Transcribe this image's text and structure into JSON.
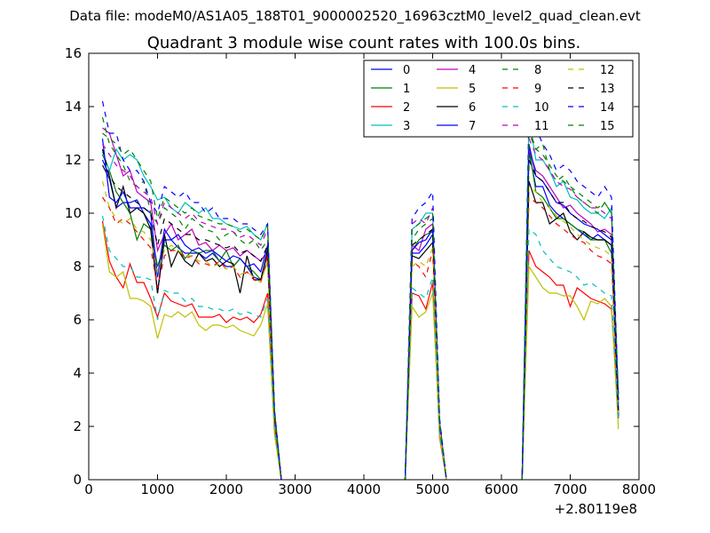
{
  "chart_data": {
    "type": "line",
    "suptitle": "Data file: modeM0/AS1A05_188T01_9000002520_16963cztM0_level2_quad_clean.evt",
    "title": "Quadrant 3 module wise count rates with 100.0s bins.",
    "xlabel": "",
    "ylabel": "",
    "x_offset_label": "+2.80119e8",
    "xlim": [
      0,
      8000
    ],
    "ylim": [
      0,
      16
    ],
    "xticks": [
      "0",
      "1000",
      "2000",
      "3000",
      "4000",
      "5000",
      "6000",
      "7000",
      "8000"
    ],
    "yticks": [
      "0",
      "2",
      "4",
      "6",
      "8",
      "10",
      "12",
      "14",
      "16"
    ],
    "grid": false,
    "legend_position": "top-right",
    "legend_columns": 4,
    "segments": [
      {
        "x_start": 200,
        "step": 100,
        "count": 25
      },
      {
        "x_start": 4600,
        "step": 100,
        "count": 6
      },
      {
        "x_start": 6300,
        "step": 100,
        "count": 15
      }
    ],
    "series": [
      {
        "name": "0",
        "color": "#0000ff",
        "dash": false,
        "values": [
          [
            12.0,
            11.4,
            10.2,
            10.4,
            10.4,
            10.5,
            10.0,
            9.6,
            7.0,
            9.0,
            9.0,
            8.7,
            8.5,
            8.5,
            8.5,
            8.3,
            8.5,
            8.2,
            8.0,
            8.0,
            8.3,
            8.0,
            7.6,
            7.5,
            8.5,
            2.3,
            0
          ],
          [
            0,
            8.5,
            8.5,
            8.8,
            9.2,
            2.0,
            0
          ],
          [
            0,
            12.3,
            11.0,
            11.0,
            10.3,
            10.0,
            9.8,
            9.6,
            9.4,
            9.2,
            9.0,
            9.2,
            9.0,
            8.8,
            2.3
          ]
        ]
      },
      {
        "name": "1",
        "color": "#008000",
        "dash": false,
        "values": [
          [
            12.2,
            11.6,
            10.8,
            10.4,
            10.0,
            9.0,
            9.6,
            9.4,
            8.0,
            8.8,
            8.6,
            8.8,
            8.3,
            8.6,
            8.5,
            8.6,
            8.6,
            8.2,
            8.6,
            8.0,
            8.3,
            8.0,
            7.8,
            7.5,
            8.2,
            2.1,
            0
          ],
          [
            0,
            8.6,
            9.0,
            9.2,
            9.3,
            2.0,
            0
          ],
          [
            0,
            12.5,
            10.8,
            10.6,
            10.2,
            9.8,
            9.8,
            9.6,
            9.4,
            9.3,
            9.0,
            9.0,
            9.0,
            8.5,
            3.2
          ]
        ]
      },
      {
        "name": "2",
        "color": "#ff0000",
        "dash": false,
        "values": [
          [
            9.7,
            8.2,
            7.6,
            7.2,
            8.1,
            7.4,
            7.4,
            6.8,
            6.1,
            7.0,
            6.7,
            6.6,
            6.5,
            6.6,
            6.1,
            6.1,
            6.1,
            6.2,
            5.9,
            6.1,
            6.0,
            6.1,
            5.9,
            6.2,
            7.0,
            1.8,
            0
          ],
          [
            0,
            7.0,
            6.9,
            6.4,
            7.4,
            1.6,
            0
          ],
          [
            0,
            8.6,
            8.0,
            7.8,
            7.6,
            7.3,
            7.3,
            6.5,
            7.2,
            7.0,
            6.8,
            6.7,
            6.6,
            6.4,
            2.5
          ]
        ]
      },
      {
        "name": "3",
        "color": "#00bfbf",
        "dash": false,
        "values": [
          [
            12.3,
            11.6,
            12.4,
            12.0,
            12.2,
            12.0,
            11.4,
            11.0,
            10.5,
            10.6,
            10.2,
            10.0,
            10.4,
            10.2,
            10.0,
            10.2,
            9.8,
            9.8,
            9.6,
            9.5,
            9.4,
            9.5,
            9.2,
            9.0,
            9.6,
            2.6,
            0
          ],
          [
            0,
            9.4,
            9.6,
            10.0,
            10.0,
            2.2,
            0
          ],
          [
            0,
            13.6,
            12.0,
            12.0,
            11.6,
            11.0,
            11.2,
            10.6,
            10.5,
            10.2,
            10.0,
            10.0,
            9.8,
            10.2,
            2.8
          ]
        ]
      },
      {
        "name": "4",
        "color": "#bf00bf",
        "dash": false,
        "values": [
          [
            13.2,
            13.0,
            12.2,
            11.4,
            11.6,
            10.8,
            10.6,
            10.4,
            8.6,
            9.2,
            9.6,
            9.0,
            9.2,
            9.4,
            8.8,
            8.9,
            8.6,
            8.8,
            8.6,
            8.7,
            8.4,
            8.6,
            8.4,
            8.2,
            8.6,
            2.4,
            0
          ],
          [
            0,
            8.8,
            8.6,
            9.4,
            9.6,
            2.1,
            0
          ],
          [
            0,
            12.4,
            11.6,
            11.4,
            11.0,
            10.6,
            10.2,
            10.3,
            10.0,
            9.8,
            9.6,
            9.3,
            9.4,
            9.2,
            2.6
          ]
        ]
      },
      {
        "name": "5",
        "color": "#bfbf00",
        "dash": false,
        "values": [
          [
            9.6,
            7.8,
            7.6,
            7.8,
            6.8,
            6.8,
            6.7,
            6.5,
            5.3,
            6.2,
            6.1,
            6.3,
            6.1,
            6.3,
            5.8,
            5.6,
            5.8,
            5.8,
            5.7,
            5.8,
            5.6,
            5.5,
            5.4,
            5.8,
            6.6,
            1.7,
            0
          ],
          [
            0,
            6.5,
            6.1,
            6.3,
            7.0,
            1.7,
            0
          ],
          [
            0,
            8.0,
            7.6,
            7.2,
            7.0,
            7.0,
            6.9,
            6.9,
            6.5,
            6.0,
            6.7,
            6.6,
            6.8,
            6.5,
            1.9
          ]
        ]
      },
      {
        "name": "6",
        "color": "#000000",
        "dash": false,
        "values": [
          [
            11.8,
            11.3,
            10.2,
            11.0,
            10.0,
            10.2,
            10.0,
            9.4,
            7.0,
            9.2,
            8.0,
            8.6,
            8.2,
            8.0,
            8.5,
            8.2,
            8.3,
            8.0,
            8.2,
            8.1,
            7.0,
            8.4,
            7.5,
            7.5,
            8.6,
            2.3,
            0
          ],
          [
            0,
            8.4,
            8.3,
            8.6,
            8.9,
            2.0,
            0
          ],
          [
            0,
            11.2,
            10.4,
            10.4,
            9.6,
            9.8,
            10.0,
            9.3,
            9.0,
            9.3,
            9.1,
            9.0,
            9.0,
            8.8,
            2.4
          ]
        ]
      },
      {
        "name": "7",
        "color": "#0000ff",
        "dash": false,
        "values": [
          [
            12.8,
            10.6,
            10.4,
            10.8,
            10.2,
            10.2,
            10.2,
            10.0,
            7.6,
            9.4,
            9.0,
            9.2,
            8.8,
            8.6,
            8.7,
            8.5,
            8.6,
            8.4,
            8.2,
            8.4,
            8.3,
            8.0,
            8.1,
            7.8,
            8.8,
            2.4,
            0
          ],
          [
            0,
            8.6,
            8.9,
            9.0,
            9.4,
            2.1,
            0
          ],
          [
            0,
            12.6,
            11.4,
            11.2,
            10.8,
            10.4,
            10.3,
            10.0,
            9.8,
            9.6,
            9.5,
            9.4,
            9.2,
            9.0,
            2.5
          ]
        ]
      },
      {
        "name": "8",
        "color": "#008000",
        "dash": true,
        "values": [
          [
            13.6,
            12.6,
            12.2,
            11.8,
            11.2,
            11.0,
            11.2,
            10.0,
            9.6,
            10.2,
            10.0,
            9.8,
            9.4,
            9.8,
            9.6,
            9.4,
            9.3,
            9.0,
            9.2,
            9.3,
            9.0,
            8.8,
            9.0,
            8.6,
            9.0,
            2.5,
            0
          ],
          [
            0,
            9.0,
            9.4,
            9.6,
            9.8,
            2.2,
            0
          ],
          [
            0,
            13.2,
            12.4,
            12.6,
            11.6,
            11.2,
            11.4,
            11.0,
            10.6,
            10.4,
            10.2,
            10.0,
            10.4,
            10.0,
            3.0
          ]
        ]
      },
      {
        "name": "9",
        "color": "#ff0000",
        "dash": true,
        "values": [
          [
            10.6,
            10.2,
            9.6,
            9.8,
            9.6,
            9.3,
            9.0,
            8.7,
            7.2,
            8.4,
            8.6,
            8.6,
            8.3,
            8.4,
            8.1,
            8.1,
            8.0,
            8.2,
            7.9,
            8.0,
            7.6,
            7.8,
            7.5,
            7.4,
            8.4,
            2.2,
            0
          ],
          [
            0,
            8.2,
            8.0,
            7.6,
            8.6,
            1.9,
            0
          ],
          [
            0,
            10.6,
            10.4,
            10.2,
            9.9,
            9.6,
            9.4,
            9.2,
            9.0,
            8.9,
            8.6,
            8.4,
            8.3,
            8.1,
            2.4
          ]
        ]
      },
      {
        "name": "10",
        "color": "#00bfbf",
        "dash": true,
        "values": [
          [
            9.9,
            8.6,
            8.3,
            8.0,
            8.0,
            7.6,
            7.6,
            7.5,
            6.0,
            7.1,
            7.0,
            7.0,
            6.7,
            6.8,
            6.5,
            6.5,
            6.4,
            6.4,
            6.3,
            6.4,
            6.2,
            6.3,
            6.2,
            6.1,
            6.8,
            1.9,
            0
          ],
          [
            0,
            7.2,
            7.0,
            6.8,
            7.6,
            1.7,
            0
          ],
          [
            0,
            9.4,
            9.2,
            8.6,
            8.3,
            8.0,
            7.9,
            7.8,
            7.6,
            7.3,
            7.4,
            7.2,
            7.0,
            6.9,
            2.2
          ]
        ]
      },
      {
        "name": "11",
        "color": "#bf00bf",
        "dash": true,
        "values": [
          [
            12.6,
            12.2,
            11.8,
            11.6,
            11.4,
            11.0,
            10.8,
            10.6,
            9.6,
            10.4,
            10.2,
            10.0,
            9.8,
            10.0,
            9.7,
            9.6,
            9.5,
            9.4,
            9.4,
            9.3,
            9.1,
            9.2,
            9.0,
            8.8,
            9.4,
            2.6,
            0
          ],
          [
            0,
            9.6,
            9.8,
            9.6,
            10.2,
            2.3,
            0
          ],
          [
            0,
            12.8,
            12.2,
            12.0,
            11.6,
            11.2,
            11.0,
            10.9,
            10.6,
            10.4,
            10.2,
            10.2,
            10.0,
            9.8,
            2.8
          ]
        ]
      },
      {
        "name": "12",
        "color": "#bfbf00",
        "dash": true,
        "values": [
          [
            11.2,
            10.2,
            9.8,
            9.6,
            9.8,
            9.4,
            9.3,
            9.0,
            7.8,
            8.6,
            8.8,
            8.6,
            8.4,
            8.4,
            8.2,
            8.2,
            8.0,
            8.1,
            7.9,
            8.0,
            7.7,
            7.8,
            7.6,
            7.4,
            8.2,
            2.2,
            0
          ],
          [
            0,
            8.0,
            8.2,
            8.0,
            8.7,
            1.9,
            0
          ],
          [
            0,
            11.0,
            10.8,
            10.4,
            10.2,
            9.9,
            9.7,
            9.5,
            9.2,
            9.0,
            8.8,
            8.7,
            8.6,
            8.4,
            2.4
          ]
        ]
      },
      {
        "name": "13",
        "color": "#000000",
        "dash": true,
        "values": [
          [
            12.4,
            11.4,
            11.0,
            10.8,
            10.6,
            10.4,
            10.2,
            10.0,
            8.8,
            9.8,
            9.6,
            9.4,
            9.2,
            9.2,
            9.0,
            9.0,
            8.9,
            8.8,
            8.7,
            8.8,
            8.5,
            8.6,
            8.4,
            8.2,
            8.8,
            2.4,
            0
          ],
          [
            0,
            8.8,
            9.0,
            9.2,
            9.4,
            2.1,
            0
          ],
          [
            0,
            12.0,
            11.4,
            11.2,
            10.8,
            10.4,
            10.4,
            10.0,
            9.8,
            9.7,
            9.5,
            9.4,
            9.3,
            9.1,
            2.6
          ]
        ]
      },
      {
        "name": "14",
        "color": "#0000ff",
        "dash": true,
        "values": [
          [
            14.2,
            13.0,
            13.0,
            12.0,
            11.6,
            11.6,
            11.2,
            10.4,
            10.0,
            11.0,
            10.8,
            10.6,
            10.8,
            10.4,
            10.4,
            10.0,
            10.2,
            9.8,
            9.8,
            9.8,
            9.6,
            9.6,
            9.4,
            9.2,
            9.6,
            2.6,
            0
          ],
          [
            0,
            9.8,
            10.2,
            10.4,
            10.8,
            2.3,
            0
          ],
          [
            0,
            13.8,
            13.2,
            12.6,
            12.2,
            11.6,
            11.8,
            11.6,
            11.2,
            11.0,
            10.8,
            10.6,
            11.0,
            10.6,
            3.0
          ]
        ]
      },
      {
        "name": "15",
        "color": "#008000",
        "dash": true,
        "values": [
          [
            13.0,
            12.8,
            12.6,
            12.2,
            12.4,
            12.0,
            11.6,
            11.2,
            9.8,
            10.6,
            10.4,
            10.2,
            10.0,
            10.2,
            9.9,
            9.8,
            9.7,
            9.6,
            9.6,
            9.5,
            9.3,
            9.4,
            9.2,
            9.0,
            9.5,
            2.6,
            0
          ],
          [
            0,
            9.4,
            9.6,
            9.8,
            10.0,
            2.2,
            0
          ],
          [
            0,
            13.0,
            12.4,
            12.2,
            11.8,
            11.4,
            11.2,
            11.0,
            10.8,
            10.6,
            10.4,
            10.2,
            10.4,
            10.0,
            3.2
          ]
        ]
      }
    ]
  }
}
